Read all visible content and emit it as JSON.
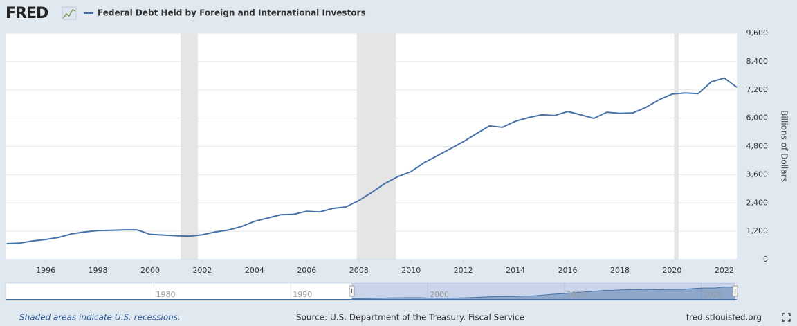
{
  "chart_data": {
    "type": "line",
    "logo": "FRED",
    "ylabel": "Billions of Dollars",
    "note": "Shaded areas indicate U.S. recessions.",
    "source": "Source: U.S. Department of the Treasury. Fiscal Service",
    "site": "fred.stlouisfed.org",
    "x": [
      1994.5,
      1995.0,
      1995.5,
      1996.0,
      1996.5,
      1997.0,
      1997.5,
      1998.0,
      1998.5,
      1999.0,
      1999.5,
      2000.0,
      2000.5,
      2001.0,
      2001.5,
      2002.0,
      2002.5,
      2003.0,
      2003.5,
      2004.0,
      2004.5,
      2005.0,
      2005.5,
      2006.0,
      2006.5,
      2007.0,
      2007.5,
      2008.0,
      2008.5,
      2009.0,
      2009.5,
      2010.0,
      2010.5,
      2011.0,
      2011.5,
      2012.0,
      2012.5,
      2013.0,
      2013.5,
      2014.0,
      2014.5,
      2015.0,
      2015.5,
      2016.0,
      2016.5,
      2017.0,
      2017.5,
      2018.0,
      2018.5,
      2019.0,
      2019.5,
      2020.0,
      2020.5,
      2021.0,
      2021.5,
      2022.0,
      2022.48
    ],
    "series": [
      {
        "name": "Federal Debt Held by Foreign and International Investors",
        "color": "#4572a7",
        "values": [
          675,
          700,
          790,
          850,
          940,
          1090,
          1170,
          1230,
          1240,
          1260,
          1260,
          1070,
          1040,
          1010,
          990,
          1050,
          1170,
          1250,
          1400,
          1620,
          1760,
          1900,
          1920,
          2050,
          2020,
          2170,
          2230,
          2500,
          2850,
          3230,
          3520,
          3730,
          4110,
          4400,
          4700,
          5000,
          5340,
          5670,
          5610,
          5870,
          6020,
          6140,
          6110,
          6280,
          6140,
          5990,
          6250,
          6200,
          6220,
          6460,
          6780,
          7020,
          7070,
          7040,
          7540,
          7700,
          7310
        ]
      }
    ],
    "recessions": [
      [
        2001.17,
        2001.83
      ],
      [
        2007.92,
        2009.42
      ],
      [
        2020.08,
        2020.25
      ]
    ],
    "xlim": [
      1994.46,
      2022.48
    ],
    "xticks": [
      1996,
      1998,
      2000,
      2002,
      2004,
      2006,
      2008,
      2010,
      2012,
      2014,
      2016,
      2018,
      2020,
      2022
    ],
    "ylim": [
      0,
      9600
    ],
    "yticks": [
      0,
      {
        "value": 1200,
        "label": "1,200"
      },
      {
        "value": 2400,
        "label": "2,400"
      },
      {
        "value": 3600,
        "label": "3,600"
      },
      {
        "value": 4800,
        "label": "4,800"
      },
      {
        "value": 6000,
        "label": "6,000"
      },
      {
        "value": 7200,
        "label": "7,200"
      },
      {
        "value": 8400,
        "label": "8,400"
      },
      {
        "value": 9600,
        "label": "9,600"
      }
    ],
    "grid": true,
    "navigator": {
      "xlim": [
        1969.15,
        2022.6
      ],
      "xticks": [
        1980,
        1990,
        2000,
        2010,
        2020
      ]
    }
  }
}
